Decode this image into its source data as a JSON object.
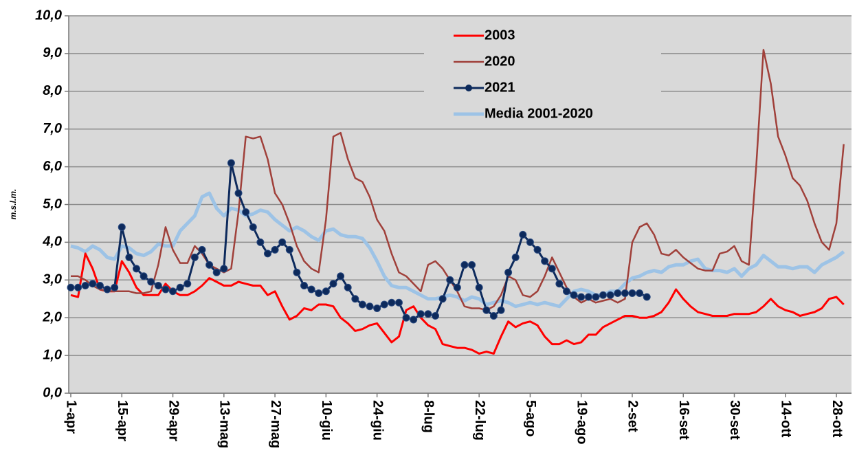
{
  "chart_data": {
    "type": "line",
    "y_label": "m.s.l.m.",
    "categories": [
      "1-apr",
      null,
      null,
      null,
      null,
      null,
      null,
      "15-apr",
      null,
      null,
      null,
      null,
      null,
      null,
      "29-apr",
      null,
      null,
      null,
      null,
      null,
      null,
      "13-mag",
      null,
      null,
      null,
      null,
      null,
      null,
      "27-mag",
      null,
      null,
      null,
      null,
      null,
      null,
      "10-giu",
      null,
      null,
      null,
      null,
      null,
      null,
      "24-giu",
      null,
      null,
      null,
      null,
      null,
      null,
      "8-lug",
      null,
      null,
      null,
      null,
      null,
      null,
      "22-lug",
      null,
      null,
      null,
      null,
      null,
      null,
      "5-ago",
      null,
      null,
      null,
      null,
      null,
      null,
      "19-ago",
      null,
      null,
      null,
      null,
      null,
      null,
      "2-set",
      null,
      null,
      null,
      null,
      null,
      null,
      "16-set",
      null,
      null,
      null,
      null,
      null,
      null,
      "30-set",
      null,
      null,
      null,
      null,
      null,
      null,
      "14-ott",
      null,
      null,
      null,
      null,
      null,
      null,
      "28-ott",
      null
    ],
    "series": [
      {
        "name": "2003",
        "color": "#ff0000",
        "width": 3,
        "marker": false,
        "values": [
          2.6,
          2.55,
          3.7,
          3.3,
          2.75,
          2.7,
          2.7,
          3.5,
          3.2,
          2.8,
          2.6,
          2.6,
          2.6,
          2.9,
          2.7,
          2.6,
          2.6,
          2.7,
          2.85,
          3.05,
          2.95,
          2.85,
          2.85,
          2.95,
          2.9,
          2.85,
          2.85,
          2.6,
          2.7,
          2.3,
          1.95,
          2.05,
          2.25,
          2.2,
          2.35,
          2.35,
          2.3,
          2.0,
          1.85,
          1.65,
          1.7,
          1.8,
          1.85,
          1.6,
          1.35,
          1.5,
          2.2,
          2.3,
          2.0,
          1.8,
          1.7,
          1.3,
          1.25,
          1.2,
          1.2,
          1.15,
          1.05,
          1.1,
          1.05,
          1.5,
          1.9,
          1.75,
          1.85,
          1.9,
          1.8,
          1.5,
          1.3,
          1.3,
          1.4,
          1.3,
          1.35,
          1.55,
          1.55,
          1.75,
          1.85,
          1.95,
          2.05,
          2.05,
          2.0,
          2.0,
          2.05,
          2.15,
          2.4,
          2.75,
          2.5,
          2.3,
          2.15,
          2.1,
          2.05,
          2.05,
          2.05,
          2.1,
          2.1,
          2.1,
          2.15,
          2.3,
          2.5,
          2.3,
          2.2,
          2.15,
          2.05,
          2.1,
          2.15,
          2.25,
          2.5,
          2.55,
          2.35
        ]
      },
      {
        "name": "2020",
        "color": "#a0403a",
        "width": 2.5,
        "marker": false,
        "values": [
          3.1,
          3.1,
          3.0,
          2.85,
          2.75,
          2.7,
          2.7,
          2.7,
          2.7,
          2.65,
          2.65,
          2.7,
          3.4,
          4.4,
          3.8,
          3.45,
          3.45,
          3.9,
          3.7,
          3.4,
          3.3,
          3.2,
          3.3,
          4.8,
          6.8,
          6.75,
          6.8,
          6.2,
          5.3,
          5.0,
          4.5,
          3.9,
          3.5,
          3.3,
          3.2,
          4.6,
          6.8,
          6.9,
          6.2,
          5.7,
          5.6,
          5.2,
          4.6,
          4.3,
          3.7,
          3.2,
          3.1,
          2.9,
          2.7,
          3.4,
          3.5,
          3.3,
          3.0,
          2.7,
          2.3,
          2.25,
          2.25,
          2.2,
          2.3,
          2.6,
          3.1,
          3.0,
          2.6,
          2.55,
          2.7,
          3.1,
          3.6,
          3.2,
          2.8,
          2.55,
          2.4,
          2.5,
          2.4,
          2.45,
          2.5,
          2.4,
          2.5,
          4.0,
          4.4,
          4.5,
          4.2,
          3.7,
          3.65,
          3.8,
          3.6,
          3.45,
          3.3,
          3.25,
          3.25,
          3.7,
          3.75,
          3.9,
          3.5,
          3.4,
          6.0,
          9.1,
          8.2,
          6.8,
          6.3,
          5.7,
          5.5,
          5.1,
          4.5,
          4.0,
          3.8,
          4.5,
          6.6
        ]
      },
      {
        "name": "2021",
        "color": "#0d2a5c",
        "width": 3,
        "marker": true,
        "values": [
          2.8,
          2.8,
          2.85,
          2.9,
          2.85,
          2.75,
          2.8,
          4.4,
          3.6,
          3.3,
          3.1,
          2.95,
          2.85,
          2.75,
          2.7,
          2.8,
          2.9,
          3.6,
          3.8,
          3.4,
          3.2,
          3.3,
          6.1,
          5.3,
          4.8,
          4.4,
          4.0,
          3.7,
          3.8,
          4.0,
          3.8,
          3.2,
          2.85,
          2.75,
          2.65,
          2.7,
          2.9,
          3.1,
          2.8,
          2.5,
          2.35,
          2.3,
          2.25,
          2.35,
          2.4,
          2.4,
          2.0,
          1.95,
          2.1,
          2.1,
          2.05,
          2.5,
          3.0,
          2.8,
          3.4,
          3.4,
          2.8,
          2.2,
          2.05,
          2.2,
          3.2,
          3.6,
          4.2,
          4.0,
          3.8,
          3.5,
          3.3,
          2.9,
          2.7,
          2.6,
          2.55,
          2.55,
          2.55,
          2.6,
          2.6,
          2.65,
          2.65,
          2.65,
          2.65,
          2.55,
          null,
          null,
          null,
          null,
          null,
          null,
          null,
          null,
          null,
          null,
          null,
          null,
          null,
          null,
          null,
          null,
          null,
          null,
          null,
          null,
          null,
          null,
          null,
          null,
          null,
          null,
          null
        ]
      },
      {
        "name": "Media 2001-2020",
        "color": "#9dc3e6",
        "width": 5,
        "marker": false,
        "values": [
          3.9,
          3.85,
          3.75,
          3.9,
          3.8,
          3.6,
          3.55,
          3.9,
          3.85,
          3.7,
          3.65,
          3.75,
          3.95,
          3.9,
          3.9,
          4.3,
          4.5,
          4.7,
          5.2,
          5.3,
          4.9,
          4.7,
          4.9,
          4.85,
          4.7,
          4.75,
          4.85,
          4.8,
          4.6,
          4.45,
          4.3,
          4.4,
          4.3,
          4.15,
          4.05,
          4.3,
          4.35,
          4.2,
          4.15,
          4.15,
          4.1,
          3.85,
          3.5,
          3.1,
          2.85,
          2.8,
          2.8,
          2.7,
          2.6,
          2.5,
          2.5,
          2.55,
          2.6,
          2.55,
          2.45,
          2.55,
          2.5,
          2.35,
          2.4,
          2.45,
          2.4,
          2.3,
          2.35,
          2.4,
          2.35,
          2.4,
          2.35,
          2.3,
          2.5,
          2.7,
          2.75,
          2.7,
          2.6,
          2.6,
          2.7,
          2.7,
          2.9,
          3.05,
          3.1,
          3.2,
          3.25,
          3.2,
          3.35,
          3.4,
          3.4,
          3.5,
          3.55,
          3.3,
          3.25,
          3.25,
          3.2,
          3.3,
          3.1,
          3.3,
          3.4,
          3.65,
          3.5,
          3.35,
          3.35,
          3.3,
          3.35,
          3.35,
          3.2,
          3.4,
          3.5,
          3.6,
          3.75
        ]
      }
    ],
    "ylim": [
      0,
      10
    ],
    "yticks": [
      {
        "value": 0,
        "label": "0,0"
      },
      {
        "value": 1,
        "label": "1,0"
      },
      {
        "value": 2,
        "label": "2,0"
      },
      {
        "value": 3,
        "label": "3,0"
      },
      {
        "value": 4,
        "label": "4,0"
      },
      {
        "value": 5,
        "label": "5,0"
      },
      {
        "value": 6,
        "label": "6,0"
      },
      {
        "value": 7,
        "label": "7,0"
      },
      {
        "value": 8,
        "label": "8,0"
      },
      {
        "value": 9,
        "label": "9,0"
      },
      {
        "value": 10,
        "label": "10,0"
      }
    ],
    "grid": true
  }
}
